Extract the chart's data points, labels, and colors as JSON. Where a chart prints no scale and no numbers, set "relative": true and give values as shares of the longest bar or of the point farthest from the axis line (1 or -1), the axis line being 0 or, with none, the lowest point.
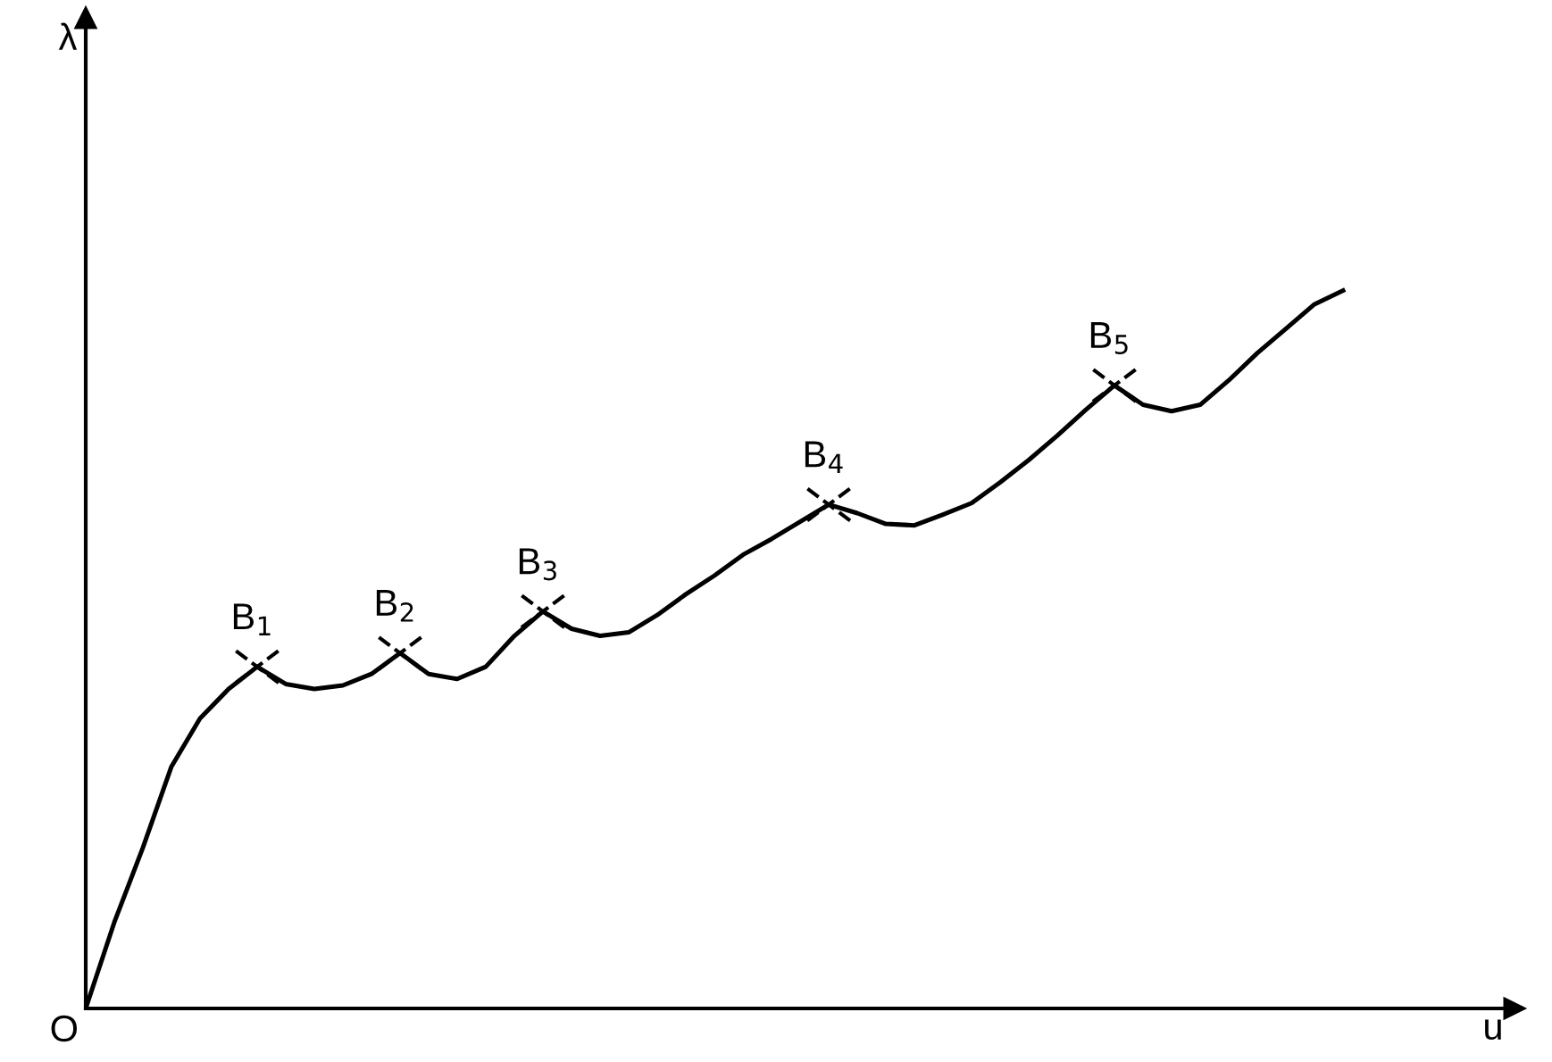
{
  "chart_data": {
    "type": "line",
    "relative": true,
    "xlabel": "u",
    "marker": "none",
    "line_style": "solid",
    "categories": [
      null,
      null,
      null,
      null,
      null,
      null,
      null,
      null,
      null,
      null,
      null,
      null,
      null,
      null,
      null,
      null,
      null,
      null,
      null,
      null,
      null,
      null,
      null,
      null,
      null,
      null,
      null,
      null,
      null,
      null,
      null,
      null,
      null,
      null,
      null,
      null,
      null,
      null,
      null,
      null,
      null,
      null,
      null,
      null,
      null
    ],
    "series": [
      {
        "color": "#000000",
        "values": [
          0,
          0.12,
          0.224,
          0.337,
          0.404,
          0.445,
          0.476,
          0.452,
          0.445,
          0.45,
          0.466,
          0.495,
          0.466,
          0.459,
          0.476,
          0.519,
          0.553,
          0.529,
          0.519,
          0.524,
          0.548,
          0.577,
          0.603,
          0.632,
          0.654,
          0.678,
          0.702,
          0.69,
          0.675,
          0.673,
          0.688,
          0.704,
          0.733,
          0.764,
          0.798,
          0.834,
          0.868,
          0.841,
          0.832,
          0.841,
          0.875,
          0.913,
          0.947,
          0.981,
          1.0
        ]
      }
    ],
    "annotations": [
      "O",
      "λ",
      {
        "text": "B$_{1}$",
        "y": 0.476
      },
      {
        "text": "B$_{2}$",
        "y": 0.495
      },
      {
        "text": "B$_{3}$",
        "y": 0.553
      },
      {
        "text": "B$_{4}$",
        "y": 0.702
      },
      {
        "text": "B$_{5}$",
        "y": 0.868
      }
    ]
  }
}
